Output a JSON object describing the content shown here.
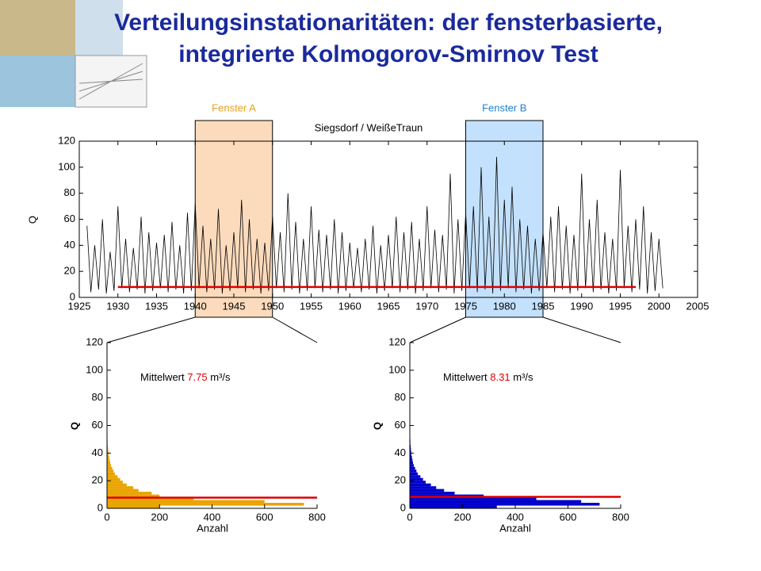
{
  "slide": {
    "title_lines": [
      "Verteilungsinstationaritäten: der fensterbasierte,",
      "integrierte Kolmogorov-Smirnov Test"
    ]
  },
  "chart_data": [
    {
      "type": "line",
      "title": "Siegsdorf / WeißeTraun",
      "ylabel": "Q",
      "x": [
        1926,
        1926.5,
        1927,
        1927.5,
        1928,
        1928.5,
        1929,
        1929.5,
        1930,
        1930.5,
        1931,
        1931.5,
        1932,
        1932.5,
        1933,
        1933.5,
        1934,
        1934.5,
        1935,
        1935.5,
        1936,
        1936.5,
        1937,
        1937.5,
        1938,
        1938.5,
        1939,
        1939.5,
        1940,
        1940.5,
        1941,
        1941.5,
        1942,
        1942.5,
        1943,
        1943.5,
        1944,
        1944.5,
        1945,
        1945.5,
        1946,
        1946.5,
        1947,
        1947.5,
        1948,
        1948.5,
        1949,
        1949.5,
        1950,
        1950.5,
        1951,
        1951.5,
        1952,
        1952.5,
        1953,
        1953.5,
        1954,
        1954.5,
        1955,
        1955.5,
        1956,
        1956.5,
        1957,
        1957.5,
        1958,
        1958.5,
        1959,
        1959.5,
        1960,
        1960.5,
        1961,
        1961.5,
        1962,
        1962.5,
        1963,
        1963.5,
        1964,
        1964.5,
        1965,
        1965.5,
        1966,
        1966.5,
        1967,
        1967.5,
        1968,
        1968.5,
        1969,
        1969.5,
        1970,
        1970.5,
        1971,
        1971.5,
        1972,
        1972.5,
        1973,
        1973.5,
        1974,
        1974.5,
        1975,
        1975.5,
        1976,
        1976.5,
        1977,
        1977.5,
        1978,
        1978.5,
        1979,
        1979.5,
        1980,
        1980.5,
        1981,
        1981.5,
        1982,
        1982.5,
        1983,
        1983.5,
        1984,
        1984.5,
        1985,
        1985.5,
        1986,
        1986.5,
        1987,
        1987.5,
        1988,
        1988.5,
        1989,
        1989.5,
        1990,
        1990.5,
        1991,
        1991.5,
        1992,
        1992.5,
        1993,
        1993.5,
        1994,
        1994.5,
        1995,
        1995.5,
        1996,
        1996.5,
        1997,
        1997.5,
        1998,
        1998.5,
        1999,
        1999.5,
        2000,
        2000.5
      ],
      "series": [
        {
          "color": "#000000",
          "values": [
            55,
            4,
            40,
            6,
            60,
            3,
            35,
            5,
            70,
            7,
            45,
            4,
            38,
            6,
            62,
            3,
            50,
            5,
            42,
            7,
            48,
            4,
            58,
            6,
            40,
            3,
            65,
            5,
            72,
            7,
            55,
            4,
            45,
            6,
            68,
            3,
            40,
            5,
            50,
            7,
            75,
            4,
            60,
            6,
            45,
            3,
            42,
            5,
            62,
            7,
            50,
            4,
            80,
            6,
            58,
            3,
            45,
            5,
            70,
            7,
            52,
            4,
            48,
            6,
            60,
            3,
            50,
            5,
            42,
            7,
            38,
            4,
            45,
            6,
            55,
            3,
            40,
            5,
            48,
            7,
            62,
            4,
            50,
            6,
            58,
            3,
            45,
            5,
            70,
            7,
            52,
            4,
            48,
            6,
            95,
            3,
            60,
            5,
            65,
            7,
            70,
            4,
            100,
            6,
            62,
            3,
            108,
            5,
            75,
            7,
            85,
            4,
            60,
            6,
            55,
            3,
            45,
            5,
            50,
            7,
            62,
            4,
            70,
            6,
            55,
            3,
            48,
            5,
            95,
            7,
            60,
            4,
            75,
            6,
            50,
            3,
            45,
            5,
            98,
            7,
            55,
            4,
            60,
            6,
            70,
            3,
            50,
            5,
            45,
            7
          ]
        },
        {
          "color": "#e00000",
          "x": [
            1930,
            1997
          ],
          "values": [
            8,
            8
          ]
        }
      ],
      "xlim": [
        1925,
        2005
      ],
      "xticks": [
        1925,
        1930,
        1935,
        1940,
        1945,
        1950,
        1955,
        1960,
        1965,
        1970,
        1975,
        1980,
        1985,
        1990,
        1995,
        2000,
        2005
      ],
      "ylim": [
        0,
        120
      ],
      "yticks": [
        0,
        20,
        40,
        60,
        80,
        100,
        120
      ],
      "windows": [
        {
          "label": "Fenster A",
          "range": [
            1940,
            1950
          ],
          "color": "#e8a020",
          "fill": "#fcd5b0"
        },
        {
          "label": "Fenster B",
          "range": [
            1975,
            1985
          ],
          "color": "#2080d0",
          "fill": "#b8dcfc"
        }
      ]
    },
    {
      "type": "histogram",
      "orientation": "horizontal",
      "color": "#e8a400",
      "xlabel": "Anzahl",
      "ylabel": "Q",
      "bins": [
        0,
        2,
        4,
        6,
        8,
        10,
        12,
        14,
        16,
        18,
        20,
        22,
        24,
        26,
        28,
        30,
        32,
        34,
        36,
        38,
        40,
        42,
        44,
        46,
        48,
        50
      ],
      "counts": [
        200,
        750,
        600,
        330,
        200,
        170,
        120,
        100,
        75,
        60,
        50,
        40,
        30,
        25,
        20,
        15,
        12,
        10,
        8,
        6,
        5,
        4,
        3,
        2,
        2
      ],
      "xlim": [
        0,
        800
      ],
      "xticks": [
        0,
        200,
        400,
        600,
        800
      ],
      "ylim": [
        0,
        120
      ],
      "yticks": [
        0,
        20,
        40,
        60,
        80,
        100,
        120
      ],
      "mean_label": "Mittelwert",
      "mean": 7.75,
      "mean_unit": "m³/s",
      "mean_color": "#e00000"
    },
    {
      "type": "histogram",
      "orientation": "horizontal",
      "color": "#0000cc",
      "xlabel": "Anzahl",
      "ylabel": "Q",
      "bins": [
        0,
        2,
        4,
        6,
        8,
        10,
        12,
        14,
        16,
        18,
        20,
        22,
        24,
        26,
        28,
        30,
        32,
        34,
        36,
        38,
        40,
        42,
        44,
        46,
        48,
        50
      ],
      "counts": [
        330,
        720,
        650,
        480,
        280,
        170,
        130,
        100,
        80,
        60,
        50,
        40,
        30,
        25,
        20,
        15,
        12,
        10,
        8,
        6,
        5,
        4,
        3,
        2,
        2
      ],
      "xlim": [
        0,
        800
      ],
      "xticks": [
        0,
        200,
        400,
        600,
        800
      ],
      "ylim": [
        0,
        120
      ],
      "yticks": [
        0,
        20,
        40,
        60,
        80,
        100,
        120
      ],
      "mean_label": "Mittelwert",
      "mean": 8.31,
      "mean_unit": "m³/s",
      "mean_color": "#e00000"
    }
  ]
}
